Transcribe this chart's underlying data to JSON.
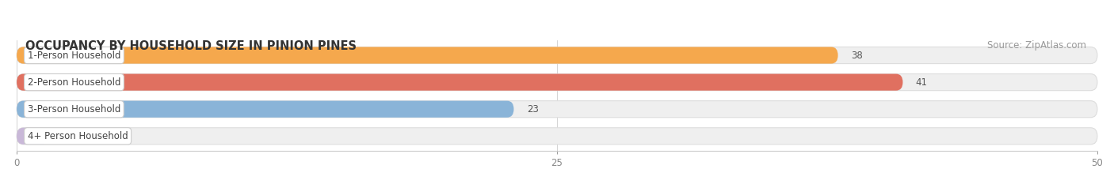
{
  "title": "OCCUPANCY BY HOUSEHOLD SIZE IN PINION PINES",
  "source": "Source: ZipAtlas.com",
  "categories": [
    "1-Person Household",
    "2-Person Household",
    "3-Person Household",
    "4+ Person Household"
  ],
  "values": [
    38,
    41,
    23,
    0
  ],
  "bar_colors": [
    "#f5a84d",
    "#e07060",
    "#8ab4d8",
    "#c9b8d8"
  ],
  "bar_bg_color": "#efefef",
  "bar_border_color": "#dddddd",
  "xlim": [
    0,
    50
  ],
  "xticks": [
    0,
    25,
    50
  ],
  "figsize": [
    14.06,
    2.33
  ],
  "dpi": 100,
  "title_fontsize": 10.5,
  "source_fontsize": 8.5,
  "label_fontsize": 8.5,
  "value_fontsize": 8.5
}
